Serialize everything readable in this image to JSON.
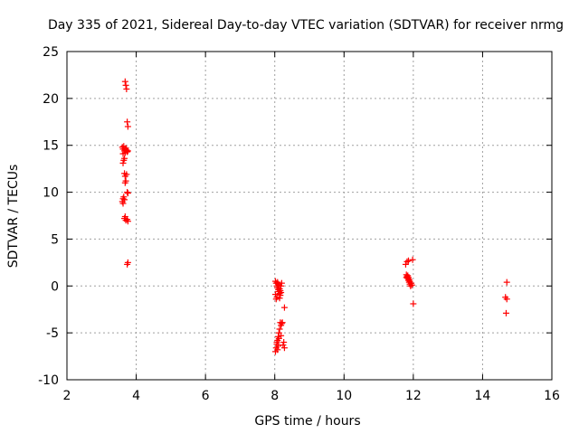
{
  "chart_data": {
    "type": "scatter",
    "title": "Day 335 of 2021, Sidereal Day-to-day VTEC variation (SDTVAR) for receiver nrmg",
    "xlabel": "GPS time / hours",
    "ylabel": "SDTVAR / TECUs",
    "xlim": [
      2,
      16
    ],
    "ylim": [
      -10,
      25
    ],
    "xticks": [
      2,
      4,
      6,
      8,
      10,
      12,
      14,
      16
    ],
    "yticks": [
      -10,
      -5,
      0,
      5,
      10,
      15,
      20,
      25
    ],
    "grid": true,
    "marker": "+",
    "color": "#ff0000",
    "series": [
      {
        "name": "SDTVAR",
        "points": [
          [
            3.68,
            21.8
          ],
          [
            3.7,
            21.4
          ],
          [
            3.72,
            21.0
          ],
          [
            3.74,
            17.5
          ],
          [
            3.76,
            17.0
          ],
          [
            3.6,
            14.8
          ],
          [
            3.62,
            14.6
          ],
          [
            3.64,
            14.9
          ],
          [
            3.66,
            14.4
          ],
          [
            3.68,
            14.2
          ],
          [
            3.7,
            14.7
          ],
          [
            3.72,
            14.5
          ],
          [
            3.74,
            14.3
          ],
          [
            3.76,
            14.4
          ],
          [
            3.62,
            14.1
          ],
          [
            3.64,
            13.4
          ],
          [
            3.62,
            13.1
          ],
          [
            3.66,
            13.6
          ],
          [
            3.66,
            12.0
          ],
          [
            3.68,
            11.7
          ],
          [
            3.7,
            11.2
          ],
          [
            3.72,
            11.9
          ],
          [
            3.68,
            11.0
          ],
          [
            3.76,
            9.9
          ],
          [
            3.74,
            10.0
          ],
          [
            3.6,
            9.0
          ],
          [
            3.62,
            9.3
          ],
          [
            3.64,
            9.5
          ],
          [
            3.66,
            9.2
          ],
          [
            3.62,
            8.8
          ],
          [
            3.66,
            7.2
          ],
          [
            3.68,
            7.4
          ],
          [
            3.7,
            7.0
          ],
          [
            3.74,
            7.1
          ],
          [
            3.76,
            6.9
          ],
          [
            3.74,
            2.3
          ],
          [
            3.76,
            2.5
          ],
          [
            8.02,
            0.5
          ],
          [
            8.04,
            0.3
          ],
          [
            8.06,
            0.0
          ],
          [
            8.08,
            -0.2
          ],
          [
            8.1,
            -0.4
          ],
          [
            8.12,
            -0.6
          ],
          [
            8.14,
            -0.8
          ],
          [
            8.16,
            -1.0
          ],
          [
            8.06,
            -1.2
          ],
          [
            8.04,
            -1.4
          ],
          [
            8.1,
            0.2
          ],
          [
            8.12,
            0.1
          ],
          [
            8.14,
            -0.3
          ],
          [
            8.16,
            -0.5
          ],
          [
            8.18,
            -0.7
          ],
          [
            8.2,
            0.3
          ],
          [
            8.18,
            0.0
          ],
          [
            8.08,
            0.4
          ],
          [
            8.02,
            -0.9
          ],
          [
            8.14,
            -1.3
          ],
          [
            8.28,
            -2.3
          ],
          [
            8.16,
            -3.9
          ],
          [
            8.18,
            -4.2
          ],
          [
            8.2,
            -4.0
          ],
          [
            8.14,
            -4.6
          ],
          [
            8.12,
            -5.0
          ],
          [
            8.1,
            -5.4
          ],
          [
            8.08,
            -5.8
          ],
          [
            8.06,
            -6.2
          ],
          [
            8.04,
            -6.6
          ],
          [
            8.02,
            -7.0
          ],
          [
            8.06,
            -6.0
          ],
          [
            8.1,
            -6.4
          ],
          [
            8.12,
            -5.6
          ],
          [
            8.26,
            -6.0
          ],
          [
            8.28,
            -6.6
          ],
          [
            8.24,
            -6.3
          ],
          [
            8.22,
            -3.9
          ],
          [
            8.08,
            -6.8
          ],
          [
            8.18,
            -5.3
          ],
          [
            11.78,
            2.3
          ],
          [
            11.82,
            2.6
          ],
          [
            11.86,
            2.7
          ],
          [
            11.98,
            2.8
          ],
          [
            11.8,
            1.2
          ],
          [
            11.82,
            1.0
          ],
          [
            11.84,
            0.8
          ],
          [
            11.86,
            0.6
          ],
          [
            11.88,
            0.4
          ],
          [
            11.9,
            0.2
          ],
          [
            11.92,
            0.0
          ],
          [
            11.84,
            1.1
          ],
          [
            11.86,
            0.9
          ],
          [
            11.88,
            0.7
          ],
          [
            11.9,
            0.5
          ],
          [
            11.8,
            0.9
          ],
          [
            11.94,
            0.3
          ],
          [
            11.96,
            0.1
          ],
          [
            12.0,
            -1.9
          ],
          [
            14.7,
            0.4
          ],
          [
            14.66,
            -1.2
          ],
          [
            14.7,
            -1.4
          ],
          [
            14.68,
            -2.9
          ]
        ]
      }
    ]
  }
}
